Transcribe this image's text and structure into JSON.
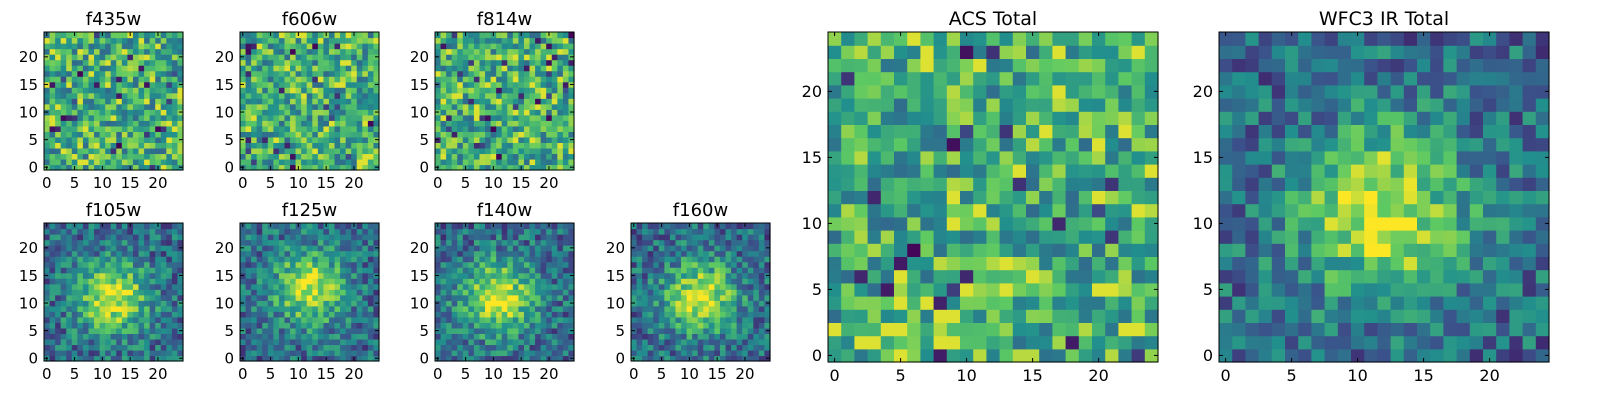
{
  "figure": {
    "background": "#ffffff"
  },
  "colormap": {
    "name": "viridis",
    "stops": [
      "#440154",
      "#3b528b",
      "#21908d",
      "#5dc963",
      "#fde725"
    ]
  },
  "chart_data": [
    {
      "type": "heatmap",
      "title": "f435w",
      "grid_size": 25,
      "xticks": [
        0,
        5,
        10,
        15,
        20
      ],
      "yticks": [
        0,
        5,
        10,
        15,
        20
      ],
      "xlim": [
        0,
        24
      ],
      "ylim": [
        0,
        24
      ],
      "center": null,
      "values": null
    },
    {
      "type": "heatmap",
      "title": "f606w",
      "grid_size": 25,
      "xticks": [
        0,
        5,
        10,
        15,
        20
      ],
      "yticks": [
        0,
        5,
        10,
        15,
        20
      ],
      "xlim": [
        0,
        24
      ],
      "ylim": [
        0,
        24
      ],
      "center": null,
      "values": null
    },
    {
      "type": "heatmap",
      "title": "f814w",
      "grid_size": 25,
      "xticks": [
        0,
        5,
        10,
        15,
        20
      ],
      "yticks": [
        0,
        5,
        10,
        15,
        20
      ],
      "xlim": [
        0,
        24
      ],
      "ylim": [
        0,
        24
      ],
      "center": null,
      "values": null
    },
    {
      "type": "heatmap",
      "title": "f105w",
      "grid_size": 25,
      "xticks": [
        0,
        5,
        10,
        15,
        20
      ],
      "yticks": [
        0,
        5,
        10,
        15,
        20
      ],
      "xlim": [
        0,
        24
      ],
      "ylim": [
        0,
        24
      ],
      "center": [
        12,
        11
      ],
      "values": null
    },
    {
      "type": "heatmap",
      "title": "f125w",
      "grid_size": 25,
      "xticks": [
        0,
        5,
        10,
        15,
        20
      ],
      "yticks": [
        0,
        5,
        10,
        15,
        20
      ],
      "xlim": [
        0,
        24
      ],
      "ylim": [
        0,
        24
      ],
      "center": [
        12,
        13
      ],
      "values": null
    },
    {
      "type": "heatmap",
      "title": "f140w",
      "grid_size": 25,
      "xticks": [
        0,
        5,
        10,
        15,
        20
      ],
      "yticks": [
        0,
        5,
        10,
        15,
        20
      ],
      "xlim": [
        0,
        24
      ],
      "ylim": [
        0,
        24
      ],
      "center": [
        11,
        11
      ],
      "values": null
    },
    {
      "type": "heatmap",
      "title": "f160w",
      "grid_size": 25,
      "xticks": [
        0,
        5,
        10,
        15,
        20
      ],
      "yticks": [
        0,
        5,
        10,
        15,
        20
      ],
      "xlim": [
        0,
        24
      ],
      "ylim": [
        0,
        24
      ],
      "center": [
        12,
        11
      ],
      "values": null
    },
    {
      "type": "heatmap",
      "title": "ACS Total",
      "grid_size": 25,
      "xticks": [
        0,
        5,
        10,
        15,
        20
      ],
      "yticks": [
        0,
        5,
        10,
        15,
        20
      ],
      "xlim": [
        0,
        24
      ],
      "ylim": [
        0,
        24
      ],
      "center": null,
      "values": null
    },
    {
      "type": "heatmap",
      "title": "WFC3 IR Total",
      "grid_size": 25,
      "xticks": [
        0,
        5,
        10,
        15,
        20
      ],
      "yticks": [
        0,
        5,
        10,
        15,
        20
      ],
      "xlim": [
        0,
        24
      ],
      "ylim": [
        0,
        24
      ],
      "center": [
        12,
        11
      ],
      "values": null
    }
  ]
}
